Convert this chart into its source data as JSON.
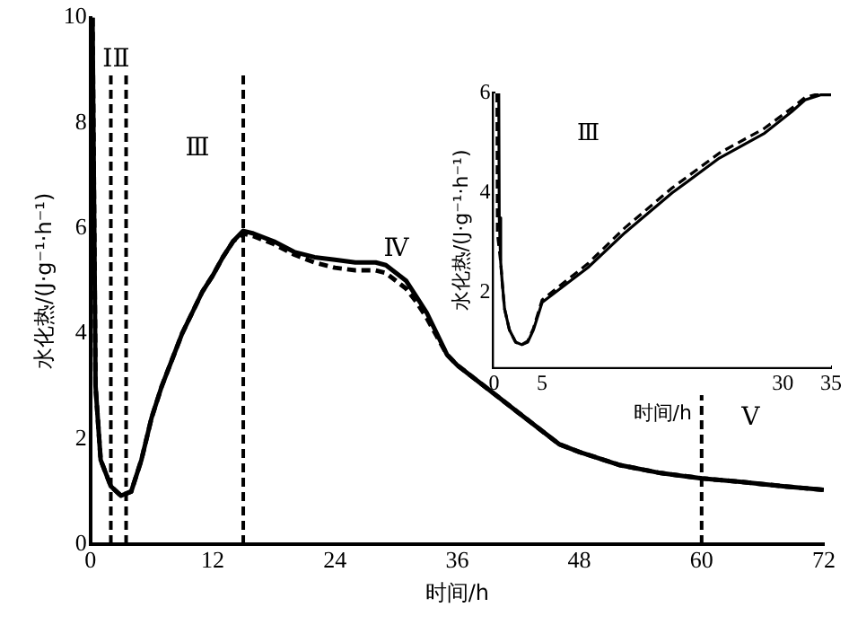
{
  "chart_data": [
    {
      "type": "line",
      "xlabel": "时间/h",
      "ylabel": "水化热/(J·g⁻¹·h⁻¹)",
      "xlim": [
        0,
        72
      ],
      "xticks": [
        0,
        12,
        24,
        36,
        48,
        60,
        72
      ],
      "ylim": [
        0,
        10
      ],
      "yticks": [
        0,
        2,
        4,
        6,
        8,
        10
      ],
      "series": [
        {
          "color": "#000000",
          "line_style": "solid",
          "x": [
            0.2,
            0.5,
            1,
            2,
            3,
            4,
            5,
            6,
            7,
            8,
            9,
            10,
            11,
            12,
            13,
            14,
            15,
            16,
            18,
            20,
            22,
            24,
            26,
            28,
            29,
            30,
            31,
            32,
            33,
            34,
            35,
            36,
            38,
            40,
            42,
            44,
            46,
            48,
            52,
            56,
            60,
            64,
            68,
            72
          ],
          "values": [
            10,
            3,
            1.6,
            1.1,
            0.92,
            1.0,
            1.6,
            2.4,
            3.0,
            3.5,
            4.0,
            4.4,
            4.8,
            5.1,
            5.45,
            5.75,
            5.95,
            5.9,
            5.75,
            5.55,
            5.45,
            5.4,
            5.35,
            5.35,
            5.3,
            5.15,
            5.0,
            4.7,
            4.4,
            4.0,
            3.6,
            3.4,
            3.1,
            2.8,
            2.5,
            2.2,
            1.9,
            1.75,
            1.5,
            1.35,
            1.25,
            1.18,
            1.1,
            1.03
          ]
        },
        {
          "color": "#000000",
          "line_style": "dashed",
          "x": [
            0.2,
            0.5,
            1,
            2,
            3,
            4,
            5,
            6,
            7,
            8,
            9,
            10,
            11,
            12,
            13,
            14,
            15,
            16,
            18,
            20,
            22,
            24,
            26,
            28,
            29,
            30,
            31,
            32,
            33,
            34,
            35,
            36,
            38,
            40,
            42,
            44,
            46,
            48,
            52,
            56,
            60,
            64,
            68,
            72
          ],
          "values": [
            10,
            3,
            1.6,
            1.1,
            0.92,
            1.0,
            1.6,
            2.4,
            3.0,
            3.5,
            4.0,
            4.4,
            4.8,
            5.1,
            5.45,
            5.75,
            5.9,
            5.85,
            5.7,
            5.5,
            5.35,
            5.25,
            5.2,
            5.2,
            5.15,
            5.0,
            4.85,
            4.6,
            4.3,
            3.95,
            3.6,
            3.4,
            3.1,
            2.8,
            2.5,
            2.2,
            1.9,
            1.75,
            1.5,
            1.35,
            1.25,
            1.18,
            1.1,
            1.03
          ]
        }
      ],
      "ref_lines": [
        {
          "axis": "x",
          "value": 2,
          "line_style": "dashed",
          "color": "#000000"
        },
        {
          "axis": "x",
          "value": 3.5,
          "line_style": "dashed",
          "color": "#000000"
        },
        {
          "axis": "x",
          "value": 15,
          "line_style": "dashed",
          "color": "#000000"
        },
        {
          "axis": "x",
          "value": 60,
          "line_style": "dashed",
          "color": "#000000"
        }
      ],
      "annotations": [
        "ⅠⅡ",
        "Ⅲ",
        "Ⅳ",
        "Ⅴ"
      ]
    },
    {
      "type": "line",
      "xlabel": "时间/h",
      "ylabel": "水化热/(J·g⁻¹·h⁻¹)",
      "xlim": [
        0,
        35
      ],
      "xticks": [
        0,
        5,
        30,
        35
      ],
      "ylim": [
        0.5,
        6
      ],
      "yticks": [
        2,
        4,
        6
      ],
      "series": [
        {
          "color": "#000000",
          "line_style": "solid",
          "x": [
            0.5,
            0.55,
            0.7,
            0.88,
            1.1,
            1.6,
            2.25,
            2.9,
            3.5,
            4.1,
            5,
            9.75,
            13.6,
            18.5,
            23.4,
            28.1,
            30.9,
            32.3,
            33.9,
            35
          ],
          "values": [
            6,
            3.5,
            2.6,
            2.15,
            1.67,
            1.25,
            1.0,
            0.95,
            1.0,
            1.25,
            1.8,
            2.5,
            3.2,
            4.0,
            4.7,
            5.2,
            5.63,
            5.87,
            5.97,
            5.97
          ]
        },
        {
          "color": "#000000",
          "line_style": "dashed",
          "x": [
            0.3,
            0.35,
            0.7,
            0.88,
            1.1,
            1.6,
            2.25,
            2.9,
            3.5,
            4.1,
            5,
            9.75,
            13.6,
            18.5,
            23.4,
            28.1,
            30.9,
            32.3,
            33.9,
            35
          ],
          "values": [
            6,
            3.2,
            2.6,
            2.15,
            1.67,
            1.25,
            1.0,
            0.95,
            1.02,
            1.28,
            1.85,
            2.58,
            3.3,
            4.1,
            4.8,
            5.3,
            5.7,
            5.92,
            6.0,
            6.0
          ]
        }
      ],
      "annotations": [
        "Ⅲ"
      ]
    }
  ]
}
